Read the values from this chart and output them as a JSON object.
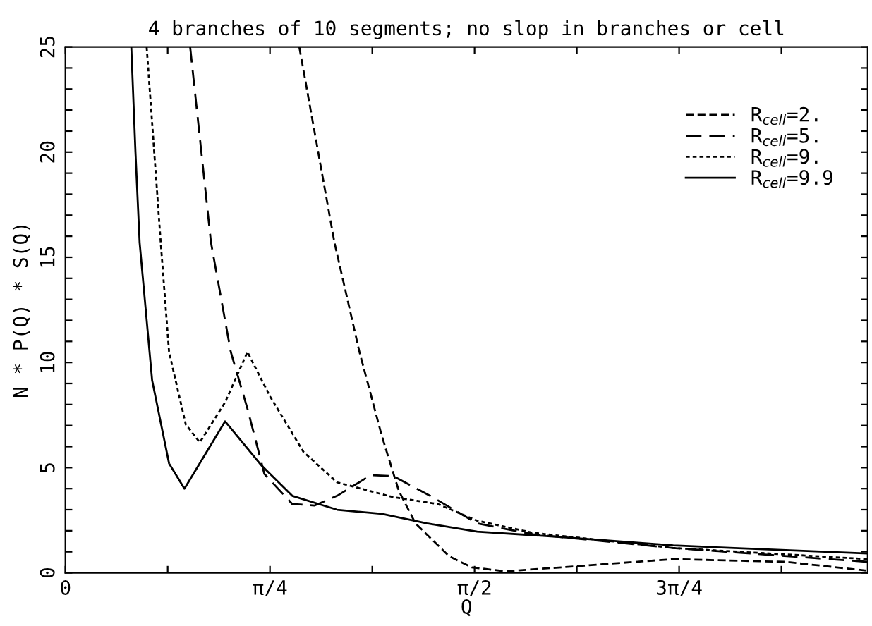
{
  "chart_data": {
    "type": "line",
    "title": "4 branches of 10 segments; no slop in branches or cell",
    "xlabel": "Q",
    "ylabel": "N * P(Q) * S(Q)",
    "xlim": [
      0,
      3.08
    ],
    "ylim": [
      0,
      25
    ],
    "xticks": [
      0,
      {
        "value": 0.3927,
        "label": null
      },
      {
        "value": 0.7854,
        "label": "π/4"
      },
      {
        "value": 1.1781,
        "label": null
      },
      {
        "value": 1.5708,
        "label": "π/2"
      },
      {
        "value": 1.9635,
        "label": null
      },
      {
        "value": 2.3562,
        "label": "3π/4"
      },
      {
        "value": 2.7489,
        "label": null
      }
    ],
    "yticks": [
      0,
      {
        "value": 1,
        "label": null
      },
      {
        "value": 2,
        "label": null
      },
      {
        "value": 3,
        "label": null
      },
      {
        "value": 4,
        "label": null
      },
      5,
      {
        "value": 6,
        "label": null
      },
      {
        "value": 7,
        "label": null
      },
      {
        "value": 8,
        "label": null
      },
      {
        "value": 9,
        "label": null
      },
      10,
      {
        "value": 11,
        "label": null
      },
      {
        "value": 12,
        "label": null
      },
      {
        "value": 13,
        "label": null
      },
      {
        "value": 14,
        "label": null
      },
      15,
      {
        "value": 16,
        "label": null
      },
      {
        "value": 17,
        "label": null
      },
      {
        "value": 18,
        "label": null
      },
      {
        "value": 19,
        "label": null
      },
      20,
      {
        "value": 21,
        "label": null
      },
      {
        "value": 22,
        "label": null
      },
      {
        "value": 23,
        "label": null
      },
      {
        "value": 24,
        "label": null
      },
      25
    ],
    "grid": false,
    "legend": "top right",
    "series": [
      {
        "name": "R$_{cell}$=2.",
        "color": "#000000",
        "line_style": "dashed",
        "x": [
          0.898,
          1.033,
          1.129,
          1.215,
          1.28,
          1.344,
          1.474,
          1.56,
          1.689,
          1.904,
          2.334,
          2.764,
          3.08
        ],
        "values": [
          25,
          15.7,
          10.5,
          6.5,
          3.9,
          2.35,
          0.78,
          0.26,
          0.07,
          0.26,
          0.65,
          0.52,
          0.1
        ]
      },
      {
        "name": "R$_{cell}$=5.",
        "color": "#000000",
        "line_style": "dashed",
        "x": [
          0.479,
          0.559,
          0.635,
          0.699,
          0.764,
          0.871,
          0.957,
          1.043,
          1.172,
          1.258,
          1.409,
          1.581,
          1.796,
          2.334,
          3.08
        ],
        "values": [
          25,
          15.7,
          10.5,
          7.8,
          4.7,
          3.27,
          3.2,
          3.66,
          4.64,
          4.6,
          3.6,
          2.35,
          1.83,
          1.18,
          0.52
        ]
      },
      {
        "name": "R$_{cell}$=9.",
        "color": "#000000",
        "line_style": "dotted",
        "x": [
          0.312,
          0.366,
          0.398,
          0.462,
          0.516,
          0.613,
          0.699,
          0.785,
          0.914,
          1.043,
          1.258,
          1.43,
          1.58,
          1.796,
          2.334,
          3.08
        ],
        "values": [
          25,
          15.7,
          10.5,
          7.06,
          6.2,
          8.1,
          10.5,
          8.4,
          5.75,
          4.3,
          3.6,
          3.27,
          2.48,
          1.9,
          1.18,
          0.65
        ]
      },
      {
        "name": "R$_{cell}$=9.9",
        "color": "#000000",
        "line_style": "solid",
        "x": [
          0.253,
          0.269,
          0.285,
          0.333,
          0.398,
          0.457,
          0.613,
          0.753,
          0.871,
          1.043,
          1.215,
          1.388,
          1.581,
          1.904,
          2.334,
          3.08
        ],
        "values": [
          25,
          20,
          15.7,
          9.15,
          5.2,
          4.0,
          7.2,
          5.1,
          3.66,
          3.0,
          2.8,
          2.35,
          1.96,
          1.7,
          1.3,
          0.92
        ]
      }
    ]
  }
}
